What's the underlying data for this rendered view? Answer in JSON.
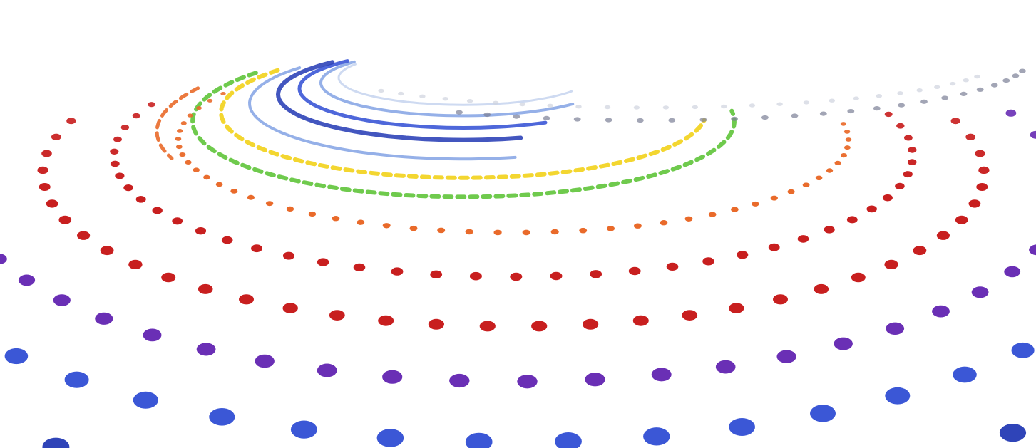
{
  "image": {
    "subject": "spiral-dot-pattern",
    "background_color": "#ffffff"
  },
  "palette": {
    "deep_blue": "#2f44b8",
    "blue": "#3b57d6",
    "light_blue": "#8aa7e6",
    "pale_blue": "#c9d6f0",
    "yellow": "#f2d21a",
    "green": "#5fc43a",
    "orange": "#e96a2a",
    "red": "#c81f1f",
    "purple": "#6a2fb5",
    "navy": "#2a3575",
    "gray": "#7a7f96",
    "pale_gray": "#cfd3de"
  }
}
